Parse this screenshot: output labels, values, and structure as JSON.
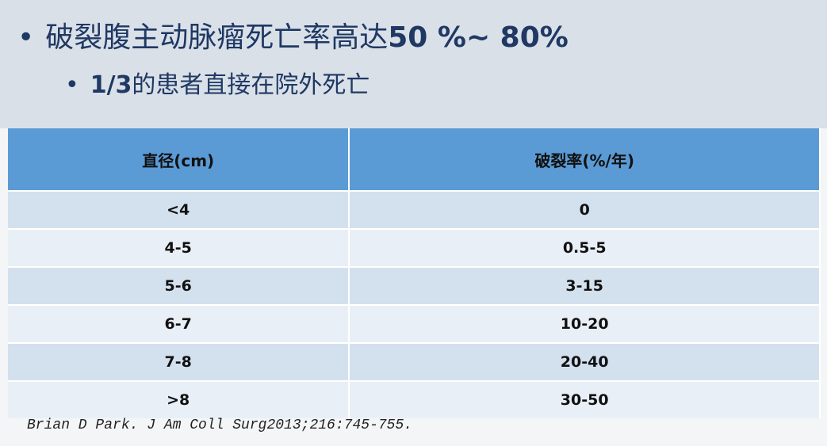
{
  "slide": {
    "bullets": [
      {
        "parts": [
          {
            "text": "破裂腹主动脉瘤死亡率高达",
            "bold": false
          },
          {
            "text": "50 %~ 80%",
            "bold": true
          }
        ]
      },
      {
        "parts": [
          {
            "text": "1/3",
            "bold": true
          },
          {
            "text": "的患者直接在院外死亡",
            "bold": false
          }
        ]
      }
    ],
    "table": {
      "header": [
        "直径(cm)",
        "破裂率(%/年)"
      ],
      "rows": [
        [
          "<4",
          "0"
        ],
        [
          "4-5",
          "0.5-5"
        ],
        [
          "5-6",
          "3-15"
        ],
        [
          "6-7",
          "10-20"
        ],
        [
          "7-8",
          "20-40"
        ],
        [
          ">8",
          "30-50"
        ]
      ]
    },
    "citation": "Brian D Park. J Am Coll Surg2013;216:745-755."
  }
}
